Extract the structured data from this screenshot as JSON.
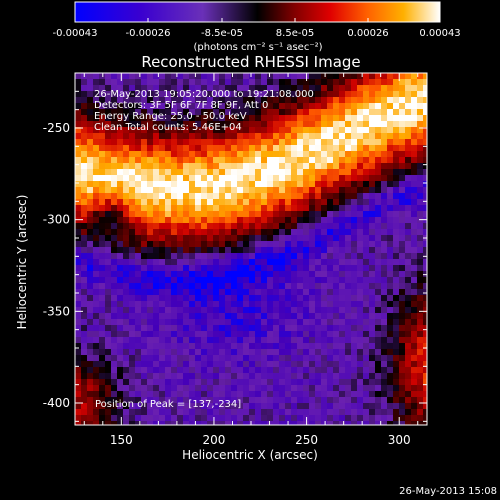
{
  "colorbar": {
    "ticks": [
      "-0.00043",
      "-0.00026",
      "-8.5e-05",
      "8.5e-05",
      "0.00026",
      "0.00043"
    ],
    "unit": "(photons cm⁻² s⁻¹ asec⁻²)"
  },
  "chart_data": {
    "type": "heatmap",
    "title": "Reconstructed RHESSI Image",
    "xlabel": "Heliocentric X (arcsec)",
    "ylabel": "Heliocentric Y (arcsec)",
    "xlim": [
      125,
      315
    ],
    "ylim": [
      -412,
      -220
    ],
    "x_ticks": [
      "150",
      "200",
      "250",
      "300"
    ],
    "y_ticks": [
      "-250",
      "-300",
      "-350",
      "-400"
    ],
    "x_tick_values": [
      150,
      200,
      250,
      300
    ],
    "y_tick_values": [
      -250,
      -300,
      -350,
      -400
    ],
    "color_range": [
      -0.00043,
      0.00043
    ],
    "colormap": [
      "#0000ff",
      "#4400b8",
      "#6a20b0",
      "#000000",
      "#700000",
      "#cc0000",
      "#ff5a00",
      "#ffaa00",
      "#ffffff"
    ],
    "annotations": [
      "26-May-2013 19:05:20.000 to 19:21:08.000",
      "Detectors: 3F 5F 6F 7F 8F 9F, Att 0",
      "Energy Range: 25.0 - 50.0 keV",
      "Clean     Total counts: 5.46E+04"
    ],
    "peak_label": "Position of Peak = [137,-234]",
    "peak": [
      137,
      -234
    ]
  },
  "footer": {
    "timestamp": "26-May-2013 15:08"
  }
}
